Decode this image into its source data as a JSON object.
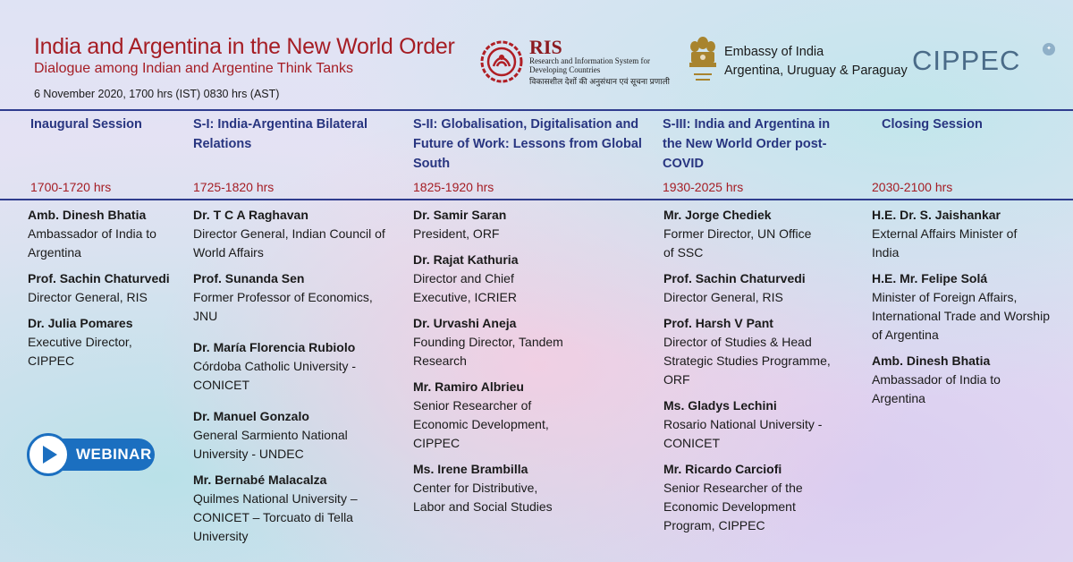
{
  "header": {
    "title": "India and Argentina in the New World Order",
    "subtitle": "Dialogue among Indian and Argentine Think Tanks",
    "dateline": "6 November 2020, 1700 hrs (IST) 0830 hrs (AST)"
  },
  "logos": {
    "ris": {
      "name": "RIS",
      "sub": "Research and Information System for Developing Countries",
      "hindi": "विकासशील देशों की अनुसंधान एवं सूचना प्रणाली"
    },
    "embassy": {
      "line1": "Embassy of India",
      "line2": "Argentina, Uruguay & Paraguay"
    },
    "cippec": "CIPPEC"
  },
  "sessions": [
    {
      "title": "Inaugural Session",
      "time": "1700-1720 hrs",
      "speakers": [
        {
          "name": "Amb. Dinesh Bhatia",
          "role": "Ambassador of India to Argentina"
        },
        {
          "name": "Prof. Sachin Chaturvedi",
          "role": "Director General, RIS"
        },
        {
          "name": "Dr. Julia Pomares",
          "role": "Executive Director, CIPPEC"
        }
      ]
    },
    {
      "title": "S-I: India-Argentina Bilateral Relations",
      "time": "1725-1820 hrs",
      "speakers": [
        {
          "name": "Dr. T C A Raghavan",
          "role": "Director General, Indian Council of World Affairs"
        },
        {
          "name": "Prof. Sunanda Sen",
          "role": "Former Professor of Economics, JNU"
        },
        {
          "name": "Dr. María Florencia Rubiolo",
          "role": "Córdoba Catholic University - CONICET"
        },
        {
          "name": "Dr. Manuel Gonzalo",
          "role": "General Sarmiento National University - UNDEC"
        },
        {
          "name": "Mr. Bernabé Malacalza",
          "role": "Quilmes National University – CONICET – Torcuato di Tella University"
        }
      ]
    },
    {
      "title": "S-II: Globalisation, Digitalisation and Future of Work: Lessons from Global South",
      "time": "1825-1920 hrs",
      "speakers": [
        {
          "name": "Dr. Samir Saran",
          "role": "President, ORF"
        },
        {
          "name": "Dr. Rajat Kathuria",
          "role": "Director and Chief Executive, ICRIER"
        },
        {
          "name": "Dr. Urvashi Aneja",
          "role": "Founding Director, Tandem Research"
        },
        {
          "name": "Mr. Ramiro Albrieu",
          "role": "Senior Researcher of Economic Development, CIPPEC"
        },
        {
          "name": "Ms. Irene Brambilla",
          "role": "Center for Distributive, Labor and Social Studies"
        }
      ]
    },
    {
      "title": "S-III: India and Argentina in the New World Order post-COVID",
      "time": "1930-2025 hrs",
      "speakers": [
        {
          "name": "Mr. Jorge Chediek",
          "role": "Former Director, UN Office of SSC"
        },
        {
          "name": "Prof. Sachin Chaturvedi",
          "role": "Director General, RIS"
        },
        {
          "name": "Prof. Harsh V Pant",
          "role": "Director of Studies & Head Strategic Studies Programme, ORF"
        },
        {
          "name": "Ms. Gladys Lechini",
          "role": "Rosario National University - CONICET"
        },
        {
          "name": "Mr. Ricardo Carciofi",
          "role": "Senior Researcher of the Economic Development Program, CIPPEC"
        }
      ]
    },
    {
      "title": "Closing Session",
      "time": "2030-2100 hrs",
      "speakers": [
        {
          "name": "H.E. Dr. S. Jaishankar",
          "role": "External Affairs Minister of India"
        },
        {
          "name": "H.E. Mr. Felipe Solá",
          "role": "Minister of Foreign Affairs, International Trade and Worship of Argentina"
        },
        {
          "name": "Amb. Dinesh Bhatia",
          "role": "Ambassador of India to Argentina"
        }
      ]
    }
  ],
  "webinar_label": "WEBINAR",
  "colors": {
    "title_red": "#a51d24",
    "session_blue": "#283580",
    "webinar_blue": "#1b6fc0",
    "cippec_blue": "#4a6b88"
  }
}
